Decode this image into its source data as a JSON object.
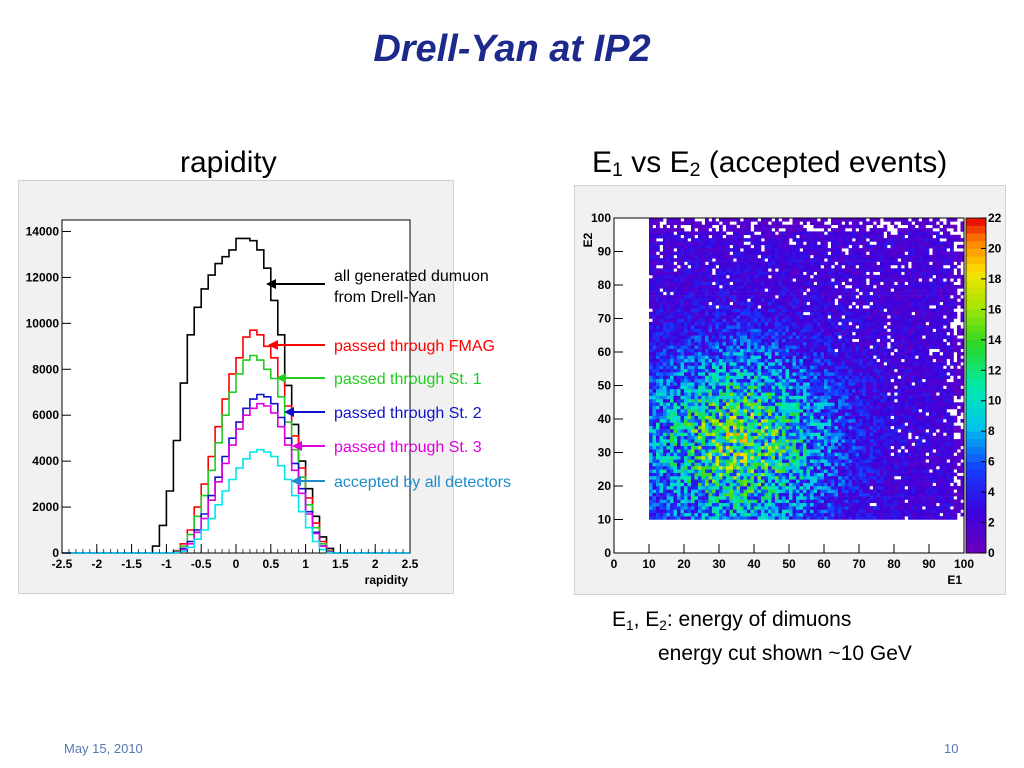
{
  "title": "Drell-Yan at IP2",
  "left_heading": "rapidity",
  "right_heading": {
    "e1": "E",
    "s1": "1",
    "vs": "vs",
    "e2": "E",
    "s2": "2",
    "rest": "(accepted events)"
  },
  "note": {
    "line1_a": "E",
    "line1_s1": "1",
    "line1_b": ", E",
    "line1_s2": "2",
    "line1_c": ": energy of dimuons",
    "line2": "energy cut shown ~10 GeV"
  },
  "footer": {
    "date": "May 15, 2010",
    "page": "10"
  },
  "colors": {
    "title": "#1d2a8c",
    "all_generated": "#000000",
    "fmag": "#ff0000",
    "st1": "#22cc22",
    "st2": "#1111cc",
    "st3": "#dd00dd",
    "accepted": "#00e5ee",
    "accepted_label": "#1e8cc8"
  },
  "chart_data": [
    {
      "type": "step",
      "xlabel": "rapidity",
      "ylabel": "",
      "xlim": [
        -2.5,
        2.5
      ],
      "ylim": [
        0,
        14500
      ],
      "x_ticks": [
        "-2.5",
        "-2",
        "-1.5",
        "-1",
        "-0.5",
        "0",
        "0.5",
        "1",
        "1.5",
        "2",
        "2.5"
      ],
      "y_ticks": [
        "0",
        "2000",
        "4000",
        "6000",
        "8000",
        "10000",
        "12000",
        "14000"
      ],
      "bin_edges": [
        -2.5,
        -2.4,
        -2.3,
        -2.2,
        -2.1,
        -2.0,
        -1.9,
        -1.8,
        -1.7,
        -1.6,
        -1.5,
        -1.4,
        -1.3,
        -1.2,
        -1.1,
        -1.0,
        -0.9,
        -0.8,
        -0.7,
        -0.6,
        -0.5,
        -0.4,
        -0.3,
        -0.2,
        -0.1,
        0.0,
        0.1,
        0.2,
        0.3,
        0.4,
        0.5,
        0.6,
        0.7,
        0.8,
        0.9,
        1.0,
        1.1,
        1.2,
        1.3,
        1.4,
        1.5,
        1.6,
        1.7,
        1.8,
        1.9,
        2.0,
        2.1,
        2.2,
        2.3,
        2.4,
        2.5
      ],
      "series": [
        {
          "name": "all generated dumuon from Drell-Yan",
          "color": "#000000",
          "values": [
            0,
            0,
            0,
            0,
            0,
            0,
            0,
            0,
            0,
            0,
            0,
            0,
            0,
            300,
            1200,
            2700,
            4900,
            7400,
            9500,
            10700,
            11500,
            12100,
            12600,
            12900,
            13200,
            13700,
            13700,
            13600,
            13200,
            12400,
            11000,
            9500,
            7300,
            5600,
            4000,
            2800,
            1600,
            700,
            200,
            0,
            0,
            0,
            0,
            0,
            0,
            0,
            0,
            0,
            0,
            0
          ]
        },
        {
          "name": "passed through FMAG",
          "color": "#ff0000",
          "values": [
            0,
            0,
            0,
            0,
            0,
            0,
            0,
            0,
            0,
            0,
            0,
            0,
            0,
            0,
            0,
            0,
            100,
            400,
            1000,
            2000,
            3000,
            4200,
            5500,
            6700,
            7800,
            8500,
            9400,
            9700,
            9500,
            9000,
            8500,
            7600,
            6400,
            5100,
            3700,
            2400,
            1300,
            500,
            100,
            0,
            0,
            0,
            0,
            0,
            0,
            0,
            0,
            0,
            0,
            0
          ]
        },
        {
          "name": "passed through St. 1",
          "color": "#22cc22",
          "values": [
            0,
            0,
            0,
            0,
            0,
            0,
            0,
            0,
            0,
            0,
            0,
            0,
            0,
            0,
            0,
            0,
            80,
            300,
            800,
            1600,
            2500,
            3600,
            4800,
            6000,
            7000,
            7800,
            8400,
            8600,
            8400,
            8000,
            7600,
            6800,
            5700,
            4500,
            3300,
            2100,
            1100,
            400,
            80,
            0,
            0,
            0,
            0,
            0,
            0,
            0,
            0,
            0,
            0,
            0
          ]
        },
        {
          "name": "passed through St. 2",
          "color": "#1111cc",
          "values": [
            0,
            0,
            0,
            0,
            0,
            0,
            0,
            0,
            0,
            0,
            0,
            0,
            0,
            0,
            0,
            0,
            50,
            200,
            500,
            1000,
            1700,
            2500,
            3300,
            4200,
            5000,
            5700,
            6300,
            6700,
            6900,
            6800,
            6500,
            5900,
            5000,
            3900,
            2800,
            1800,
            900,
            300,
            50,
            0,
            0,
            0,
            0,
            0,
            0,
            0,
            0,
            0,
            0,
            0
          ]
        },
        {
          "name": "passed through St. 3",
          "color": "#dd00dd",
          "values": [
            0,
            0,
            0,
            0,
            0,
            0,
            0,
            0,
            0,
            0,
            0,
            0,
            0,
            0,
            0,
            0,
            40,
            150,
            400,
            900,
            1500,
            2300,
            3100,
            3900,
            4700,
            5400,
            6000,
            6300,
            6500,
            6400,
            6100,
            5500,
            4700,
            3600,
            2600,
            1700,
            850,
            300,
            50,
            0,
            0,
            0,
            0,
            0,
            0,
            0,
            0,
            0,
            0,
            0
          ]
        },
        {
          "name": "accepted by all detectors",
          "color": "#00e5ee",
          "values": [
            0,
            0,
            0,
            0,
            0,
            0,
            0,
            0,
            0,
            0,
            0,
            0,
            0,
            0,
            0,
            0,
            20,
            80,
            250,
            600,
            1000,
            1500,
            2100,
            2700,
            3200,
            3700,
            4100,
            4400,
            4500,
            4400,
            4200,
            3800,
            3200,
            2500,
            1800,
            1100,
            500,
            150,
            20,
            0,
            0,
            0,
            0,
            0,
            0,
            0,
            0,
            0,
            0,
            0
          ]
        }
      ],
      "annotations": [
        {
          "lines": [
            "all generated dumuon",
            "from Drell-Yan"
          ],
          "series": 0,
          "color": "#000000"
        },
        {
          "lines": [
            "passed through FMAG"
          ],
          "series": 1,
          "color": "#ff0000"
        },
        {
          "lines": [
            "passed through St. 1"
          ],
          "series": 2,
          "color": "#22cc22"
        },
        {
          "lines": [
            "passed through St. 2"
          ],
          "series": 3,
          "color": "#1111cc"
        },
        {
          "lines": [
            "passed through St. 3"
          ],
          "series": 4,
          "color": "#dd00dd"
        },
        {
          "lines": [
            "accepted by all detectors"
          ],
          "series": 5,
          "color": "#1e8cc8"
        }
      ]
    },
    {
      "type": "heatmap",
      "xlabel": "E1",
      "ylabel": "E2",
      "xlim": [
        0,
        100
      ],
      "ylim": [
        0,
        100
      ],
      "x_ticks": [
        "0",
        "10",
        "20",
        "30",
        "40",
        "50",
        "60",
        "70",
        "80",
        "90",
        "100"
      ],
      "y_ticks": [
        "0",
        "10",
        "20",
        "30",
        "40",
        "50",
        "60",
        "70",
        "80",
        "90",
        "100"
      ],
      "z_range": [
        0,
        22
      ],
      "z_ticks": [
        "0",
        "2",
        "4",
        "6",
        "8",
        "10",
        "12",
        "14",
        "16",
        "18",
        "20",
        "22"
      ],
      "energy_cut": 10,
      "density_peak": {
        "x": 35,
        "y": 33
      },
      "grid": false
    }
  ]
}
